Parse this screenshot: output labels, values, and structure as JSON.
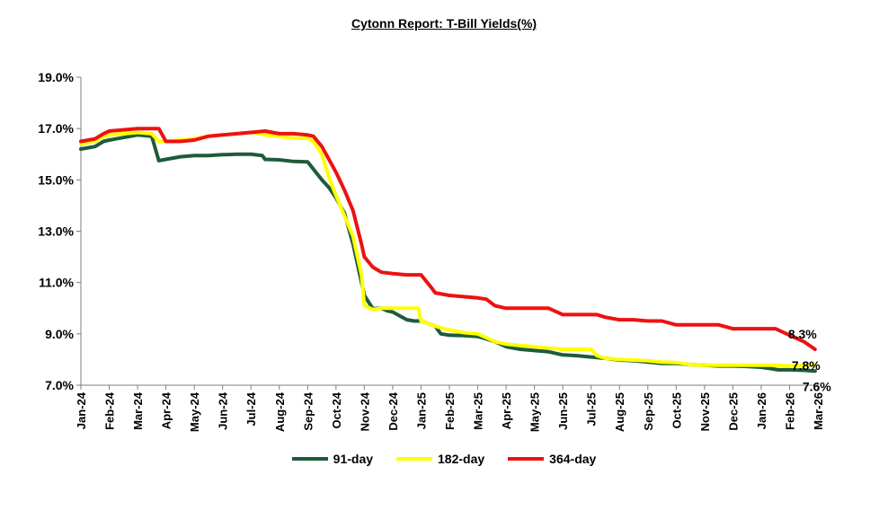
{
  "chart_data": {
    "type": "line",
    "title": "Cytonn Report: T-Bill Yields(%)",
    "xlabel": "",
    "ylabel": "",
    "ylim": [
      7.0,
      19.0
    ],
    "yticks": [
      "7.0%",
      "9.0%",
      "11.0%",
      "13.0%",
      "15.0%",
      "17.0%",
      "19.0%"
    ],
    "ytick_values": [
      7,
      9,
      11,
      13,
      15,
      17,
      19
    ],
    "categories": [
      "Jan-24",
      "Feb-24",
      "Mar-24",
      "Apr-24",
      "May-24",
      "Jun-24",
      "Jul-24",
      "Aug-24",
      "Sep-24",
      "Oct-24",
      "Nov-24",
      "Dec-24",
      "Jan-25",
      "Feb-25",
      "Mar-25",
      "Apr-25",
      "May-25",
      "Jun-25",
      "Jul-25",
      "Aug-25",
      "Sep-25",
      "Oct-25",
      "Nov-25",
      "Dec-25",
      "Jan-26",
      "Feb-26",
      "Mar-26"
    ],
    "series": [
      {
        "name": "91-day",
        "color": "#1e5b3a",
        "x": [
          0,
          0.5,
          0.8,
          1,
          1.5,
          2,
          2.5,
          2.75,
          3,
          3.5,
          4,
          4.5,
          5,
          5.5,
          6,
          6.4,
          6.5,
          7,
          7.5,
          8,
          8.5,
          8.75,
          9,
          9.3,
          9.6,
          10,
          10.3,
          10.6,
          10.8,
          11,
          11.5,
          11.75,
          12,
          12.5,
          12.7,
          13,
          13.5,
          14,
          14.3,
          14.6,
          15,
          15.5,
          16,
          16.5,
          17,
          17.5,
          18,
          18.5,
          19,
          19.5,
          20,
          20.5,
          21,
          21.5,
          22,
          22.5,
          23,
          23.5,
          24,
          24.3,
          24.6,
          25,
          25.5,
          25.9
        ],
        "values": [
          16.2,
          16.3,
          16.5,
          16.55,
          16.65,
          16.75,
          16.7,
          15.75,
          15.8,
          15.9,
          15.95,
          15.95,
          15.98,
          16.0,
          16.0,
          15.95,
          15.8,
          15.78,
          15.72,
          15.7,
          15.0,
          14.7,
          14.3,
          13.7,
          12.5,
          10.5,
          9.98,
          10.0,
          9.9,
          9.85,
          9.55,
          9.5,
          9.5,
          9.3,
          9.0,
          8.95,
          8.93,
          8.9,
          8.8,
          8.7,
          8.5,
          8.4,
          8.35,
          8.3,
          8.18,
          8.15,
          8.1,
          8.05,
          7.98,
          7.95,
          7.9,
          7.85,
          7.85,
          7.8,
          7.78,
          7.75,
          7.75,
          7.73,
          7.7,
          7.65,
          7.6,
          7.6,
          7.58,
          7.55
        ]
      },
      {
        "name": "182-day",
        "color": "#ffff00",
        "x": [
          0,
          0.5,
          0.8,
          1,
          1.5,
          2,
          2.5,
          2.75,
          3,
          3.5,
          4,
          4.5,
          5,
          5.5,
          6,
          6.3,
          6.5,
          7,
          7.5,
          8,
          8.2,
          8.5,
          8.75,
          9,
          9.3,
          9.6,
          9.9,
          10,
          10.3,
          10.6,
          11,
          11.5,
          11.9,
          12,
          12.5,
          13,
          13.5,
          14,
          14.3,
          14.6,
          15,
          15.5,
          16,
          16.5,
          17,
          17.5,
          18,
          18.2,
          18.5,
          19,
          19.5,
          20,
          20.5,
          21,
          21.5,
          22,
          22.5,
          23,
          23.5,
          24,
          24.5,
          25,
          25.5,
          25.9
        ],
        "values": [
          16.4,
          16.5,
          16.7,
          16.75,
          16.8,
          16.85,
          16.8,
          16.5,
          16.5,
          16.55,
          16.6,
          16.7,
          16.75,
          16.8,
          16.85,
          16.8,
          16.75,
          16.7,
          16.62,
          16.62,
          16.5,
          16.0,
          15.1,
          14.4,
          13.6,
          12.8,
          11.3,
          10.1,
          9.95,
          10.0,
          10.0,
          10.0,
          10.0,
          9.5,
          9.3,
          9.15,
          9.05,
          9.0,
          8.85,
          8.7,
          8.6,
          8.55,
          8.5,
          8.45,
          8.4,
          8.4,
          8.4,
          8.15,
          8.05,
          8.0,
          7.98,
          7.95,
          7.9,
          7.88,
          7.8,
          7.78,
          7.78,
          7.78,
          7.78,
          7.78,
          7.78,
          7.75,
          7.78,
          7.8
        ]
      },
      {
        "name": "364-day",
        "color": "#ee1111",
        "x": [
          0,
          0.5,
          0.8,
          1,
          1.5,
          2,
          2.5,
          2.75,
          3,
          3.5,
          4,
          4.5,
          5,
          5.5,
          6,
          6.5,
          7,
          7.5,
          8,
          8.2,
          8.5,
          8.75,
          9,
          9.3,
          9.6,
          9.9,
          10,
          10.3,
          10.6,
          11,
          11.5,
          12,
          12.4,
          12.5,
          13,
          13.5,
          14,
          14.3,
          14.6,
          15,
          15.5,
          16,
          16.5,
          17,
          17.5,
          18,
          18.2,
          18.5,
          19,
          19.5,
          20,
          20.5,
          21,
          21.5,
          22,
          22.5,
          23,
          23.5,
          24,
          24.5,
          25,
          25.5,
          25.9
        ],
        "values": [
          16.5,
          16.6,
          16.8,
          16.9,
          16.95,
          17.0,
          17.0,
          17.0,
          16.5,
          16.5,
          16.55,
          16.7,
          16.75,
          16.8,
          16.85,
          16.9,
          16.8,
          16.8,
          16.75,
          16.7,
          16.3,
          15.8,
          15.3,
          14.6,
          13.8,
          12.5,
          12.0,
          11.6,
          11.4,
          11.35,
          11.3,
          11.3,
          10.75,
          10.6,
          10.5,
          10.45,
          10.4,
          10.35,
          10.1,
          10.0,
          10.0,
          10.0,
          10.0,
          9.75,
          9.75,
          9.75,
          9.75,
          9.65,
          9.55,
          9.55,
          9.5,
          9.5,
          9.35,
          9.35,
          9.35,
          9.35,
          9.2,
          9.2,
          9.2,
          9.2,
          8.95,
          8.7,
          8.4
        ]
      }
    ],
    "annotations": [
      {
        "series": "364-day",
        "label": "8.3%"
      },
      {
        "series": "182-day",
        "label": "7.8%"
      },
      {
        "series": "91-day",
        "label": "7.6%"
      }
    ],
    "legend": "bottom-center",
    "grid": false
  }
}
